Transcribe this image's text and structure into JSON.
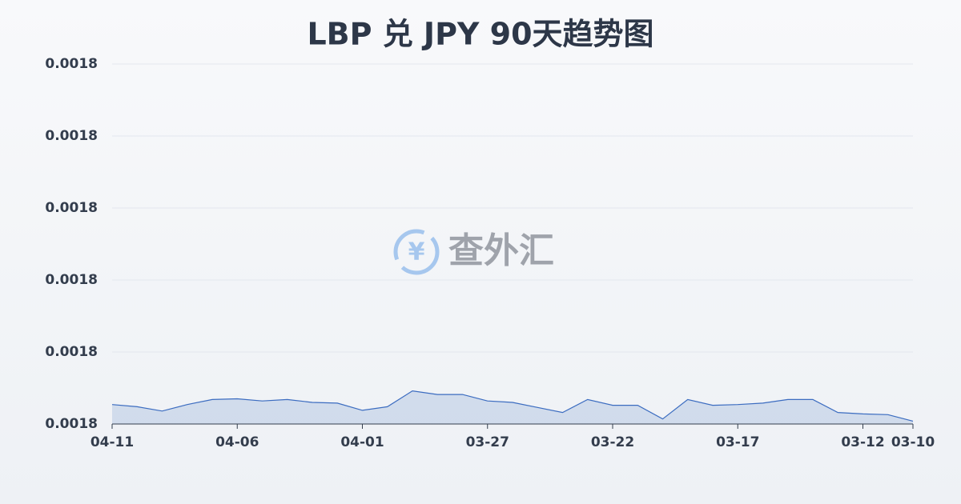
{
  "chart_data": {
    "type": "area",
    "title": "LBP 兑 JPY 90天趋势图",
    "watermark": "查外汇",
    "categories": [
      "04-11",
      null,
      null,
      null,
      null,
      "04-06",
      null,
      null,
      null,
      null,
      "04-01",
      null,
      null,
      null,
      null,
      "03-27",
      null,
      null,
      null,
      null,
      "03-22",
      null,
      null,
      null,
      null,
      "03-17",
      null,
      null,
      null,
      null,
      "03-12",
      null,
      "03-10"
    ],
    "series": [
      {
        "color": "#3b6cc0",
        "values": [
          0.0017827,
          0.0017824,
          0.0017818,
          0.0017827,
          0.0017834,
          0.0017835,
          0.0017832,
          0.0017834,
          0.001783,
          0.0017829,
          0.0017819,
          0.0017824,
          0.0017846,
          0.0017841,
          0.0017841,
          0.0017832,
          0.001783,
          0.0017823,
          0.0017816,
          0.0017834,
          0.0017826,
          0.0017826,
          0.0017807,
          0.0017834,
          0.0017826,
          0.0017827,
          0.0017829,
          0.0017834,
          0.0017834,
          0.0017816,
          0.0017814,
          0.0017813,
          0.0017804
        ]
      }
    ],
    "ylim": [
      0.00178,
      0.00183
    ],
    "yticks": [
      {
        "value": 0.00178,
        "label": "0.0018"
      },
      {
        "value": 0.00179,
        "label": "0.0018"
      },
      {
        "value": 0.0018,
        "label": "0.0018"
      },
      {
        "value": 0.00181,
        "label": "0.0018"
      },
      {
        "value": 0.00182,
        "label": "0.0018"
      },
      {
        "value": 0.00183,
        "label": "0.0018"
      }
    ],
    "grid": true
  }
}
